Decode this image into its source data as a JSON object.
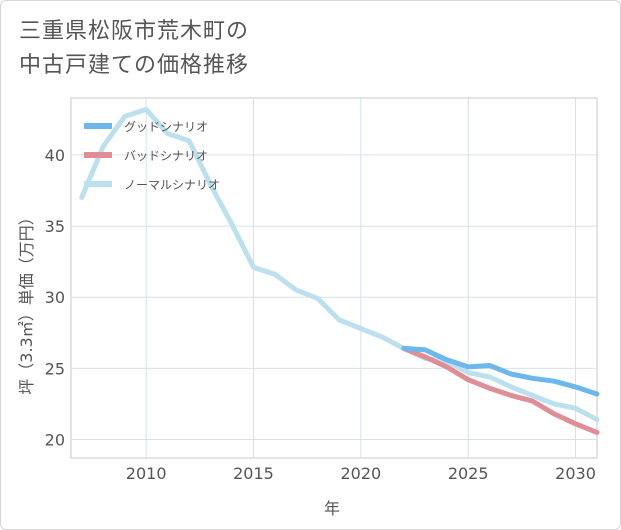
{
  "title_lines": [
    "三重県松阪市荒木町の",
    "中古戸建ての価格推移"
  ],
  "chart_data": {
    "type": "line",
    "xlabel": "年",
    "ylabel": "坪（3.3㎡）単価（万円）",
    "xlim": [
      2006.5,
      2031
    ],
    "ylim": [
      18.7,
      44
    ],
    "x_ticks": [
      2010,
      2015,
      2020,
      2025,
      2030
    ],
    "y_ticks": [
      20,
      25,
      30,
      35,
      40
    ],
    "grid": true,
    "legend_position": "top-left",
    "series": [
      {
        "name": "グッドシナリオ",
        "color": "#6cb8ec",
        "x": [
          2022,
          2023,
          2024,
          2025,
          2026,
          2027,
          2028,
          2029,
          2030,
          2031
        ],
        "y": [
          26.4,
          26.3,
          25.6,
          25.1,
          25.2,
          24.6,
          24.3,
          24.1,
          23.7,
          23.2
        ]
      },
      {
        "name": "バッドシナリオ",
        "color": "#de8e94",
        "x": [
          2022,
          2023,
          2024,
          2025,
          2026,
          2027,
          2028,
          2029,
          2030,
          2031
        ],
        "y": [
          26.4,
          25.8,
          25.1,
          24.2,
          23.6,
          23.1,
          22.7,
          21.8,
          21.1,
          20.5
        ]
      },
      {
        "name": "ノーマルシナリオ",
        "color": "#bde0ef",
        "x": [
          2007,
          2008,
          2009,
          2010,
          2011,
          2012,
          2013,
          2014,
          2015,
          2016,
          2017,
          2018,
          2019,
          2020,
          2021,
          2022,
          2023,
          2024,
          2025,
          2026,
          2027,
          2028,
          2029,
          2030,
          2031
        ],
        "y": [
          37.0,
          40.6,
          42.7,
          43.2,
          41.5,
          41.0,
          37.9,
          35.1,
          32.1,
          31.6,
          30.5,
          29.9,
          28.4,
          27.8,
          27.2,
          26.4,
          25.7,
          25.5,
          24.7,
          24.4,
          23.7,
          23.1,
          22.5,
          22.2,
          21.4
        ]
      }
    ]
  }
}
